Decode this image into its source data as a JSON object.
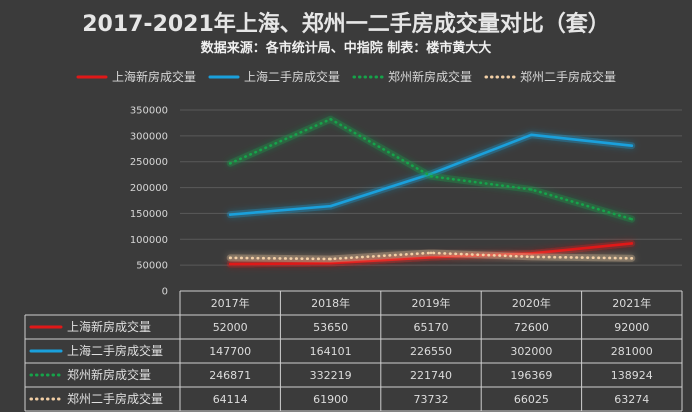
{
  "title": "2017-2021年上海、郑州一二手房成交量对比（套）",
  "subtitle": "数据来源：各市统计局、中指院  制表：楼市黄大大",
  "chart_data": {
    "type": "line",
    "title": "2017-2021年上海、郑州一二手房成交量对比（套）",
    "categories": [
      "2017年",
      "2018年",
      "2019年",
      "2020年",
      "2021年"
    ],
    "y_ticks": [
      "0",
      "50000",
      "100000",
      "150000",
      "200000",
      "250000",
      "300000",
      "350000"
    ],
    "ylim": [
      0,
      350000
    ],
    "legend_position": "top",
    "series": [
      {
        "name": "上海新房成交量",
        "values": [
          52000,
          53650,
          65170,
          72600,
          92000
        ],
        "values_text": [
          "52000",
          "53650",
          "65170",
          "72600",
          "92000"
        ],
        "color": "#e01818",
        "style": "solid"
      },
      {
        "name": "上海二手房成交量",
        "values": [
          147700,
          164101,
          226550,
          302000,
          281000
        ],
        "values_text": [
          "147700",
          "164101",
          "226550",
          "302000",
          "281000"
        ],
        "color": "#1aa0dc",
        "style": "solid"
      },
      {
        "name": "郑州新房成交量",
        "values": [
          246871,
          332219,
          221740,
          196369,
          138924
        ],
        "values_text": [
          "246871",
          "332219",
          "221740",
          "196369",
          "138924"
        ],
        "color": "#16a34a",
        "style": "dotted"
      },
      {
        "name": "郑州二手房成交量",
        "values": [
          64114,
          61900,
          73732,
          66025,
          63274
        ],
        "values_text": [
          "64114",
          "61900",
          "73732",
          "66025",
          "63274"
        ],
        "color": "#f2cfa6",
        "style": "dotted"
      }
    ]
  }
}
